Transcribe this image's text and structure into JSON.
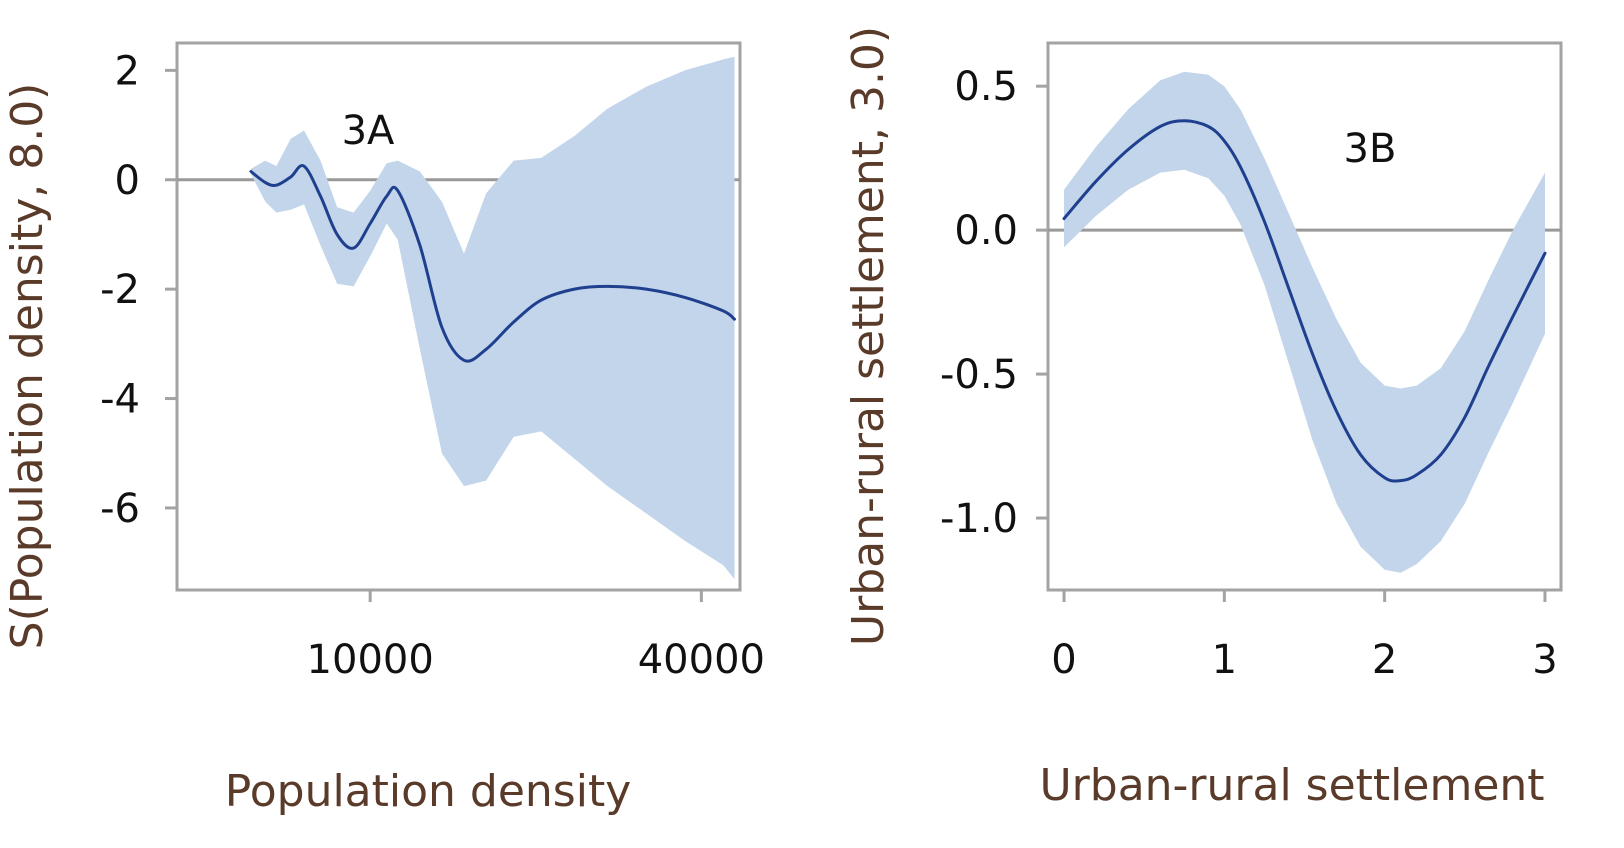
{
  "chart_data": [
    {
      "type": "line",
      "panel_label": "3A",
      "xlabel": "Population density",
      "ylabel": "S(Population density, 8.0)",
      "xlim": [
        -7500,
        43500
      ],
      "ylim": [
        -7.5,
        2.5
      ],
      "xticks": [
        10000,
        40000
      ],
      "xtick_labels": [
        "10000",
        "40000"
      ],
      "yticks": [
        2,
        0,
        -2,
        -4,
        -6
      ],
      "ytick_labels": [
        "2",
        "0",
        "-2",
        "-4",
        "-6"
      ],
      "reference_line_y": 0,
      "series": [
        {
          "x": [
            -800,
            500,
            1500,
            2800,
            4000,
            5500,
            7000,
            8500,
            10000,
            11500,
            12500,
            14500,
            16500,
            18500,
            20500,
            23000,
            25500,
            28500,
            31500,
            35000,
            38500,
            42000,
            43000
          ],
          "y": [
            0.15,
            -0.05,
            -0.1,
            0.05,
            0.25,
            -0.3,
            -1.0,
            -1.25,
            -0.8,
            -0.3,
            -0.2,
            -1.2,
            -2.7,
            -3.3,
            -3.1,
            -2.6,
            -2.2,
            -2.0,
            -1.95,
            -2.0,
            -2.15,
            -2.4,
            -2.55
          ],
          "lower": [
            0.1,
            -0.4,
            -0.6,
            -0.55,
            -0.45,
            -1.2,
            -1.9,
            -1.95,
            -1.4,
            -0.8,
            -1.1,
            -3.1,
            -5.0,
            -5.6,
            -5.5,
            -4.7,
            -4.6,
            -5.1,
            -5.6,
            -6.1,
            -6.6,
            -7.05,
            -7.3
          ],
          "upper": [
            0.2,
            0.35,
            0.25,
            0.75,
            0.9,
            0.35,
            -0.5,
            -0.6,
            -0.2,
            0.3,
            0.35,
            0.15,
            -0.4,
            -1.35,
            -0.25,
            0.35,
            0.4,
            0.8,
            1.3,
            1.7,
            2.0,
            2.2,
            2.25
          ]
        }
      ]
    },
    {
      "type": "line",
      "panel_label": "3B",
      "xlabel": "Urban-rural settlement",
      "ylabel": "Urban-rural settlement, 3.0)",
      "xlim": [
        -0.1,
        3.1
      ],
      "ylim": [
        -1.25,
        0.65
      ],
      "xticks": [
        0,
        1,
        2,
        3
      ],
      "xtick_labels": [
        "0",
        "1",
        "2",
        "3"
      ],
      "yticks": [
        0.5,
        0.0,
        -0.5,
        -1.0
      ],
      "ytick_labels": [
        "0.5",
        "0.0",
        "-0.5",
        "-1.0"
      ],
      "reference_line_y": 0,
      "series": [
        {
          "x": [
            0.0,
            0.2,
            0.4,
            0.6,
            0.75,
            0.9,
            1.0,
            1.1,
            1.25,
            1.4,
            1.55,
            1.7,
            1.85,
            2.0,
            2.1,
            2.2,
            2.35,
            2.5,
            2.65,
            2.8,
            3.0
          ],
          "y": [
            0.04,
            0.17,
            0.28,
            0.36,
            0.38,
            0.36,
            0.31,
            0.22,
            0.03,
            -0.2,
            -0.43,
            -0.63,
            -0.78,
            -0.86,
            -0.87,
            -0.85,
            -0.78,
            -0.65,
            -0.47,
            -0.3,
            -0.08
          ],
          "lower": [
            -0.06,
            0.05,
            0.14,
            0.2,
            0.21,
            0.18,
            0.12,
            0.02,
            -0.19,
            -0.46,
            -0.73,
            -0.95,
            -1.1,
            -1.18,
            -1.19,
            -1.16,
            -1.08,
            -0.95,
            -0.77,
            -0.6,
            -0.36
          ],
          "upper": [
            0.14,
            0.29,
            0.42,
            0.52,
            0.55,
            0.54,
            0.5,
            0.42,
            0.25,
            0.06,
            -0.13,
            -0.31,
            -0.46,
            -0.54,
            -0.55,
            -0.54,
            -0.48,
            -0.35,
            -0.17,
            0.0,
            0.2
          ]
        }
      ]
    }
  ]
}
